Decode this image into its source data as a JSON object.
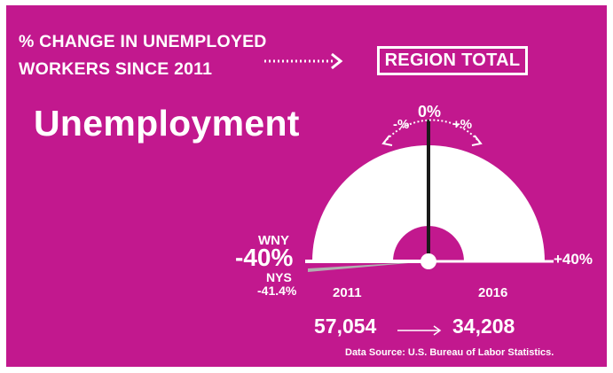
{
  "headline": {
    "line1": "% CHANGE IN UNEMPLOYED",
    "line2": "WORKERS SINCE 2011"
  },
  "region_button": "REGION TOTAL",
  "title": "Unemployment",
  "gauge": {
    "center_label": "0%",
    "minus_label": "-%",
    "plus_label": "+%",
    "right_label": "+40%",
    "wny": {
      "label": "WNY",
      "value": "-40%",
      "change_pct": -40
    },
    "nys": {
      "label": "NYS",
      "value": "-41.4%",
      "change_pct": -41.4
    },
    "start_year": "2011",
    "end_year": "2016"
  },
  "counts": {
    "start": "57,054",
    "end": "34,208"
  },
  "source": "Data Source: U.S. Bureau of Labor Statistics.",
  "colors": {
    "background": "#c2188e",
    "gauge_fill": "#ffffff",
    "needle": "#1a1a1a",
    "nys_needle": "#b0b0b0"
  }
}
